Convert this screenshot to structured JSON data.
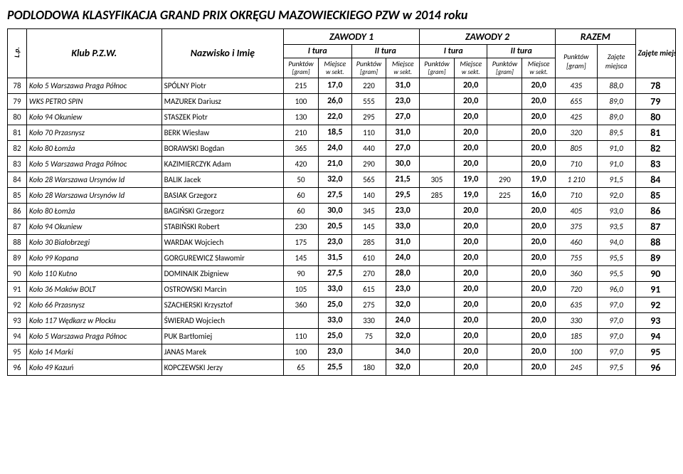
{
  "title": "PODLODOWA KLASYFIKACJA GRAND PRIX OKRĘGU MAZOWIECKIEGO PZW w 2014 roku",
  "headers": {
    "lp": "L.p.",
    "klub": "Klub P.Z.W.",
    "nazwisko": "Nazwisko i Imię",
    "zawody1": "ZAWODY 1",
    "zawody2": "ZAWODY 2",
    "razem": "RAZEM",
    "zajete_miejsce": "Zajęte miejsce",
    "i_tura": "I tura",
    "ii_tura": "II tura",
    "punktow": "Punktów",
    "gram": "[gram]",
    "miejsce": "Miejsce",
    "wsekt": "w sekt.",
    "zajete": "Zajęte",
    "miejsca": "miejsca"
  },
  "rows": [
    {
      "lp": "78",
      "club": "Koło 5 Warszawa Praga Północ",
      "name": "SPÓLNY Piotr",
      "p1": "215",
      "m1": "17,0",
      "p2": "220",
      "m2": "31,0",
      "p3": "",
      "m3": "20,0",
      "p4": "",
      "m4": "20,0",
      "sp": "435",
      "sm": "88,0",
      "final": "78"
    },
    {
      "lp": "79",
      "club": "WKS PETRO SPIN",
      "name": "MAZUREK Dariusz",
      "p1": "100",
      "m1": "26,0",
      "p2": "555",
      "m2": "23,0",
      "p3": "",
      "m3": "20,0",
      "p4": "",
      "m4": "20,0",
      "sp": "655",
      "sm": "89,0",
      "final": "79"
    },
    {
      "lp": "80",
      "club": "Koło 94 Okuniew",
      "name": "STASZEK Piotr",
      "p1": "130",
      "m1": "22,0",
      "p2": "295",
      "m2": "27,0",
      "p3": "",
      "m3": "20,0",
      "p4": "",
      "m4": "20,0",
      "sp": "425",
      "sm": "89,0",
      "final": "80"
    },
    {
      "lp": "81",
      "club": "Koło 70 Przasnysz",
      "name": "BERK Wiesław",
      "p1": "210",
      "m1": "18,5",
      "p2": "110",
      "m2": "31,0",
      "p3": "",
      "m3": "20,0",
      "p4": "",
      "m4": "20,0",
      "sp": "320",
      "sm": "89,5",
      "final": "81"
    },
    {
      "lp": "82",
      "club": "Koło 80 Łomża",
      "name": "BORAWSKI Bogdan",
      "p1": "365",
      "m1": "24,0",
      "p2": "440",
      "m2": "27,0",
      "p3": "",
      "m3": "20,0",
      "p4": "",
      "m4": "20,0",
      "sp": "805",
      "sm": "91,0",
      "final": "82"
    },
    {
      "lp": "83",
      "club": "Koło 5 Warszawa Praga Północ",
      "name": "KAZIMIERCZYK Adam",
      "p1": "420",
      "m1": "21,0",
      "p2": "290",
      "m2": "30,0",
      "p3": "",
      "m3": "20,0",
      "p4": "",
      "m4": "20,0",
      "sp": "710",
      "sm": "91,0",
      "final": "83"
    },
    {
      "lp": "84",
      "club": "Koło 28 Warszawa Ursynów Id",
      "name": "BALIK Jacek",
      "p1": "50",
      "m1": "32,0",
      "p2": "565",
      "m2": "21,5",
      "p3": "305",
      "m3": "19,0",
      "p4": "290",
      "m4": "19,0",
      "sp": "1 210",
      "sm": "91,5",
      "final": "84"
    },
    {
      "lp": "85",
      "club": "Koło 28 Warszawa Ursynów Id",
      "name": "BASIAK Grzegorz",
      "p1": "60",
      "m1": "27,5",
      "p2": "140",
      "m2": "29,5",
      "p3": "285",
      "m3": "19,0",
      "p4": "225",
      "m4": "16,0",
      "sp": "710",
      "sm": "92,0",
      "final": "85"
    },
    {
      "lp": "86",
      "club": "Koło 80 Łomża",
      "name": "BAGIŃSKI Grzegorz",
      "p1": "60",
      "m1": "30,0",
      "p2": "345",
      "m2": "23,0",
      "p3": "",
      "m3": "20,0",
      "p4": "",
      "m4": "20,0",
      "sp": "405",
      "sm": "93,0",
      "final": "86"
    },
    {
      "lp": "87",
      "club": "Koło 94 Okuniew",
      "name": "STABIŃSKI Robert",
      "p1": "230",
      "m1": "20,5",
      "p2": "145",
      "m2": "33,0",
      "p3": "",
      "m3": "20,0",
      "p4": "",
      "m4": "20,0",
      "sp": "375",
      "sm": "93,5",
      "final": "87"
    },
    {
      "lp": "88",
      "club": "Koło 30 Białobrzegi",
      "name": "WARDAK Wojciech",
      "p1": "175",
      "m1": "23,0",
      "p2": "285",
      "m2": "31,0",
      "p3": "",
      "m3": "20,0",
      "p4": "",
      "m4": "20,0",
      "sp": "460",
      "sm": "94,0",
      "final": "88"
    },
    {
      "lp": "89",
      "club": "Koło 99 Kopana",
      "name": "GORGUREWICZ Sławomir",
      "p1": "145",
      "m1": "31,5",
      "p2": "610",
      "m2": "24,0",
      "p3": "",
      "m3": "20,0",
      "p4": "",
      "m4": "20,0",
      "sp": "755",
      "sm": "95,5",
      "final": "89"
    },
    {
      "lp": "90",
      "club": "Koło 110 Kutno",
      "name": "DOMINAIK Zbigniew",
      "p1": "90",
      "m1": "27,5",
      "p2": "270",
      "m2": "28,0",
      "p3": "",
      "m3": "20,0",
      "p4": "",
      "m4": "20,0",
      "sp": "360",
      "sm": "95,5",
      "final": "90"
    },
    {
      "lp": "91",
      "club": "Koło 36 Maków BOLT",
      "name": "OSTROWSKI Marcin",
      "p1": "105",
      "m1": "33,0",
      "p2": "615",
      "m2": "23,0",
      "p3": "",
      "m3": "20,0",
      "p4": "",
      "m4": "20,0",
      "sp": "720",
      "sm": "96,0",
      "final": "91"
    },
    {
      "lp": "92",
      "club": "Koło 66 Przasnysz",
      "name": "SZACHERSKI Krzysztof",
      "p1": "360",
      "m1": "25,0",
      "p2": "275",
      "m2": "32,0",
      "p3": "",
      "m3": "20,0",
      "p4": "",
      "m4": "20,0",
      "sp": "635",
      "sm": "97,0",
      "final": "92"
    },
    {
      "lp": "93",
      "club": "Koło 117 Wędkarz w Płocku",
      "name": "ŚWIERAD Wojciech",
      "p1": "",
      "m1": "33,0",
      "p2": "330",
      "m2": "24,0",
      "p3": "",
      "m3": "20,0",
      "p4": "",
      "m4": "20,0",
      "sp": "330",
      "sm": "97,0",
      "final": "93"
    },
    {
      "lp": "94",
      "club": "Koło 5 Warszawa Praga Północ",
      "name": "PUK Bartłomiej",
      "p1": "110",
      "m1": "25,0",
      "p2": "75",
      "m2": "32,0",
      "p3": "",
      "m3": "20,0",
      "p4": "",
      "m4": "20,0",
      "sp": "185",
      "sm": "97,0",
      "final": "94"
    },
    {
      "lp": "95",
      "club": "Koło 14 Marki",
      "name": "JANAS Marek",
      "p1": "100",
      "m1": "23,0",
      "p2": "",
      "m2": "34,0",
      "p3": "",
      "m3": "20,0",
      "p4": "",
      "m4": "20,0",
      "sp": "100",
      "sm": "97,0",
      "final": "95"
    },
    {
      "lp": "96",
      "club": "Koło 49 Kazuń",
      "name": "KOPCZEWSKI Jerzy",
      "p1": "65",
      "m1": "25,5",
      "p2": "180",
      "m2": "32,0",
      "p3": "",
      "m3": "20,0",
      "p4": "",
      "m4": "20,0",
      "sp": "245",
      "sm": "97,5",
      "final": "96"
    }
  ]
}
